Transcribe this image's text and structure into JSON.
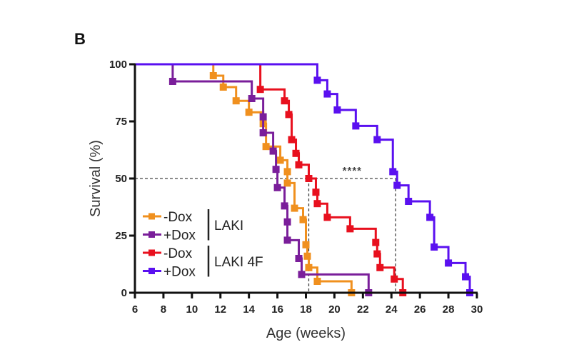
{
  "panel_label": "B",
  "chart_data": {
    "type": "line",
    "subtype": "kaplan-meier-step",
    "title": "",
    "xlabel": "Age (weeks)",
    "ylabel": "Survival (%)",
    "xlim": [
      6,
      30
    ],
    "ylim": [
      0,
      100
    ],
    "xticks": [
      6,
      8,
      10,
      12,
      14,
      16,
      18,
      20,
      22,
      24,
      26,
      28,
      30
    ],
    "yticks": [
      0,
      25,
      50,
      75,
      100
    ],
    "grid": false,
    "legend": {
      "placement": "bottom-left",
      "items": [
        {
          "label": "-Dox",
          "series": "LAKI -Dox"
        },
        {
          "label": "+Dox",
          "series": "LAKI +Dox"
        },
        {
          "label": "-Dox",
          "series": "LAKI 4F -Dox"
        },
        {
          "label": "+Dox",
          "series": "LAKI 4F +Dox"
        }
      ],
      "groups": [
        {
          "label": "LAKI"
        },
        {
          "label": "LAKI 4F"
        }
      ]
    },
    "annotations": {
      "significance": "****",
      "median_line_y": 50,
      "median_x": [
        18.2,
        24.3
      ]
    },
    "series": [
      {
        "name": "LAKI -Dox",
        "color": "#F0901E",
        "points": [
          [
            6,
            100
          ],
          [
            11.5,
            95
          ],
          [
            12.2,
            90
          ],
          [
            13.1,
            84
          ],
          [
            14.0,
            79
          ],
          [
            15.0,
            74
          ],
          [
            15.2,
            64
          ],
          [
            16.2,
            58
          ],
          [
            16.7,
            53
          ],
          [
            16.7,
            48
          ],
          [
            17.2,
            37
          ],
          [
            17.8,
            32
          ],
          [
            18.0,
            21
          ],
          [
            18.1,
            16
          ],
          [
            18.2,
            11
          ],
          [
            18.8,
            5
          ],
          [
            21.2,
            0
          ]
        ]
      },
      {
        "name": "LAKI +Dox",
        "color": "#7A1E9A",
        "points": [
          [
            6,
            100
          ],
          [
            8.65,
            92.5
          ],
          [
            14.2,
            85
          ],
          [
            15.0,
            77
          ],
          [
            15.0,
            70
          ],
          [
            15.7,
            62
          ],
          [
            15.9,
            54
          ],
          [
            16.0,
            46
          ],
          [
            16.5,
            38
          ],
          [
            16.7,
            31
          ],
          [
            16.7,
            23
          ],
          [
            17.5,
            15
          ],
          [
            17.7,
            8
          ],
          [
            22.4,
            0
          ]
        ]
      },
      {
        "name": "LAKI 4F -Dox",
        "color": "#E8101E",
        "points": [
          [
            6,
            100
          ],
          [
            14.8,
            89
          ],
          [
            16.5,
            84
          ],
          [
            16.8,
            78
          ],
          [
            17.0,
            67
          ],
          [
            17.3,
            61
          ],
          [
            17.5,
            56
          ],
          [
            18.2,
            50
          ],
          [
            18.7,
            44
          ],
          [
            18.8,
            39
          ],
          [
            19.5,
            33
          ],
          [
            21.1,
            28
          ],
          [
            22.9,
            22
          ],
          [
            23.0,
            17
          ],
          [
            23.2,
            11
          ],
          [
            24.2,
            6
          ],
          [
            24.8,
            0
          ]
        ]
      },
      {
        "name": "LAKI 4F +Dox",
        "color": "#5A10F0",
        "points": [
          [
            6,
            100
          ],
          [
            18.8,
            93
          ],
          [
            19.5,
            87
          ],
          [
            20.2,
            80
          ],
          [
            21.5,
            73
          ],
          [
            23.0,
            67
          ],
          [
            24.1,
            53
          ],
          [
            24.4,
            47
          ],
          [
            25.2,
            40
          ],
          [
            26.7,
            33
          ],
          [
            27.0,
            20
          ],
          [
            28.0,
            13
          ],
          [
            29.2,
            7
          ],
          [
            29.5,
            0
          ]
        ]
      }
    ]
  }
}
